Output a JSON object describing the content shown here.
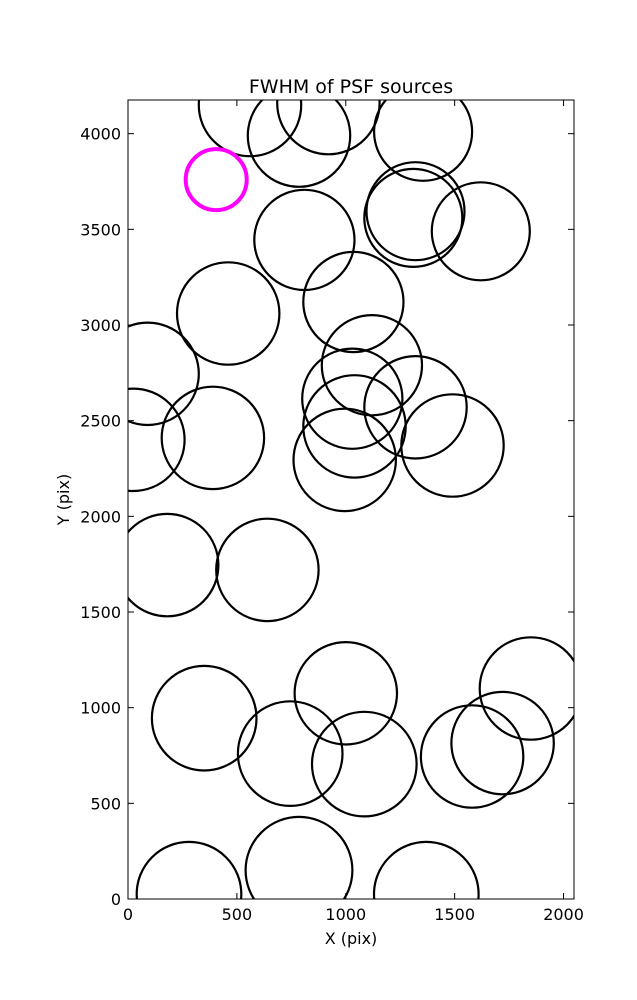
{
  "chart_data": {
    "type": "scatter",
    "title": "FWHM of PSF sources",
    "xlabel": "X (pix)",
    "ylabel": "Y (pix)",
    "xlim": [
      0,
      2048
    ],
    "ylim": [
      0,
      4176
    ],
    "xticks": [
      0,
      500,
      1000,
      1500,
      2000
    ],
    "yticks": [
      0,
      500,
      1000,
      1500,
      2000,
      2500,
      3000,
      3500,
      4000
    ],
    "grid": false,
    "marker": "circle",
    "marker_radius_units": "x-data",
    "colors": {
      "source": "#000000",
      "highlight": "#ff00ff"
    },
    "sources": [
      {
        "x": 560,
        "y": 4150,
        "r": 235
      },
      {
        "x": 920,
        "y": 4160,
        "r": 235
      },
      {
        "x": 785,
        "y": 3990,
        "r": 235
      },
      {
        "x": 1355,
        "y": 4010,
        "r": 225
      },
      {
        "x": 1320,
        "y": 3595,
        "r": 225
      },
      {
        "x": 1310,
        "y": 3560,
        "r": 225
      },
      {
        "x": 1620,
        "y": 3490,
        "r": 225
      },
      {
        "x": 810,
        "y": 3445,
        "r": 230
      },
      {
        "x": 1035,
        "y": 3120,
        "r": 230
      },
      {
        "x": 460,
        "y": 3060,
        "r": 235
      },
      {
        "x": 90,
        "y": 2745,
        "r": 235
      },
      {
        "x": 1120,
        "y": 2790,
        "r": 230
      },
      {
        "x": 1030,
        "y": 2615,
        "r": 230
      },
      {
        "x": 1320,
        "y": 2570,
        "r": 235
      },
      {
        "x": 1040,
        "y": 2470,
        "r": 235
      },
      {
        "x": 25,
        "y": 2400,
        "r": 235
      },
      {
        "x": 390,
        "y": 2410,
        "r": 235
      },
      {
        "x": 1490,
        "y": 2370,
        "r": 235
      },
      {
        "x": 995,
        "y": 2295,
        "r": 235
      },
      {
        "x": 180,
        "y": 1745,
        "r": 235
      },
      {
        "x": 640,
        "y": 1720,
        "r": 235
      },
      {
        "x": 1000,
        "y": 1075,
        "r": 235
      },
      {
        "x": 1850,
        "y": 1100,
        "r": 235
      },
      {
        "x": 350,
        "y": 945,
        "r": 240
      },
      {
        "x": 1720,
        "y": 815,
        "r": 235
      },
      {
        "x": 745,
        "y": 760,
        "r": 240
      },
      {
        "x": 1580,
        "y": 745,
        "r": 235
      },
      {
        "x": 1085,
        "y": 705,
        "r": 240
      },
      {
        "x": 280,
        "y": 25,
        "r": 240
      },
      {
        "x": 785,
        "y": 150,
        "r": 245
      },
      {
        "x": 1370,
        "y": 25,
        "r": 240
      }
    ],
    "highlight": {
      "x": 405,
      "y": 3760,
      "r": 140
    }
  }
}
